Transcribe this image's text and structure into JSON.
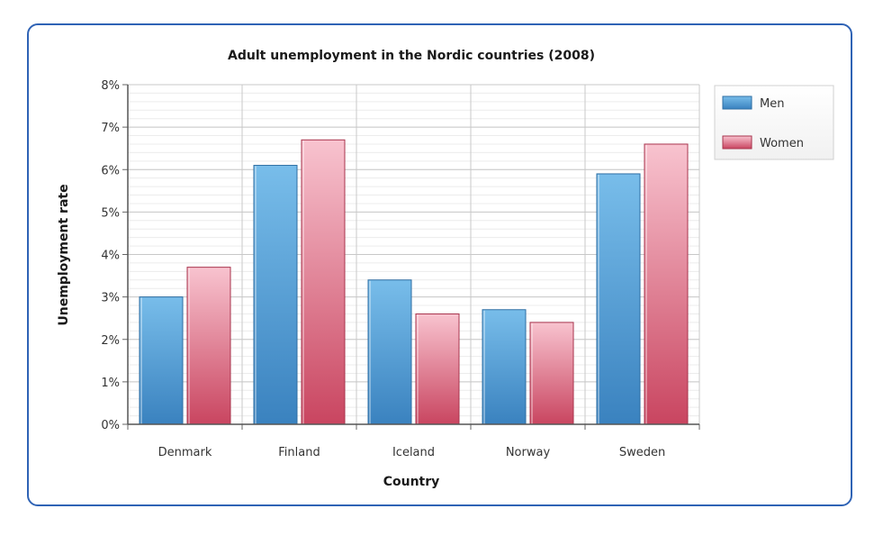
{
  "chart_data": {
    "type": "bar",
    "title": "Adult unemployment in the Nordic countries (2008)",
    "xlabel": "Country",
    "ylabel": "Unemployment rate",
    "categories": [
      "Denmark",
      "Finland",
      "Iceland",
      "Norway",
      "Sweden"
    ],
    "series": [
      {
        "name": "Men",
        "values": [
          3.0,
          6.1,
          3.4,
          2.7,
          5.9
        ],
        "color": "#4a9ad6"
      },
      {
        "name": "Women",
        "values": [
          3.7,
          6.7,
          2.6,
          2.4,
          6.6
        ],
        "color": "#e07a8c"
      }
    ],
    "ylim": [
      0,
      8
    ],
    "yticks": [
      "0%",
      "1%",
      "2%",
      "3%",
      "4%",
      "5%",
      "6%",
      "7%",
      "8%"
    ],
    "grid": true,
    "legend_position": "top-right"
  }
}
